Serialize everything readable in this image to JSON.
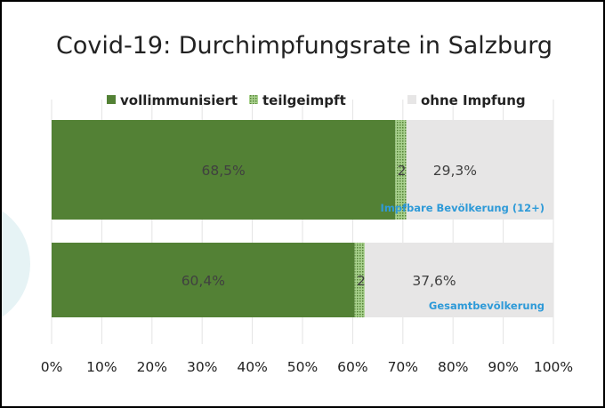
{
  "chart_data": {
    "type": "bar",
    "orientation": "horizontal",
    "stacked": true,
    "title": "Covid-19: Durchimpfungsrate in Salzburg",
    "categories": [
      "Impfbare Bevölkerung (12+)",
      "Gesamtbevölkerung"
    ],
    "series": [
      {
        "name": "vollimmunisiert",
        "values": [
          68.5,
          60.4
        ],
        "labels": [
          "68,5%",
          "60,4%"
        ],
        "color": "#538135"
      },
      {
        "name": "teilgeimpft",
        "values": [
          2.2,
          2.0
        ],
        "labels": [
          "2,2%",
          "2,0%"
        ],
        "color": "#a9d18e"
      },
      {
        "name": "ohne Impfung",
        "values": [
          29.3,
          37.6
        ],
        "labels": [
          "29,3%",
          "37,6%"
        ],
        "color": "#e7e6e6"
      }
    ],
    "xlim": [
      0,
      100
    ],
    "xticks": [
      "0%",
      "10%",
      "20%",
      "30%",
      "40%",
      "50%",
      "60%",
      "70%",
      "80%",
      "90%",
      "100%"
    ],
    "grid": true,
    "legend": "top"
  }
}
